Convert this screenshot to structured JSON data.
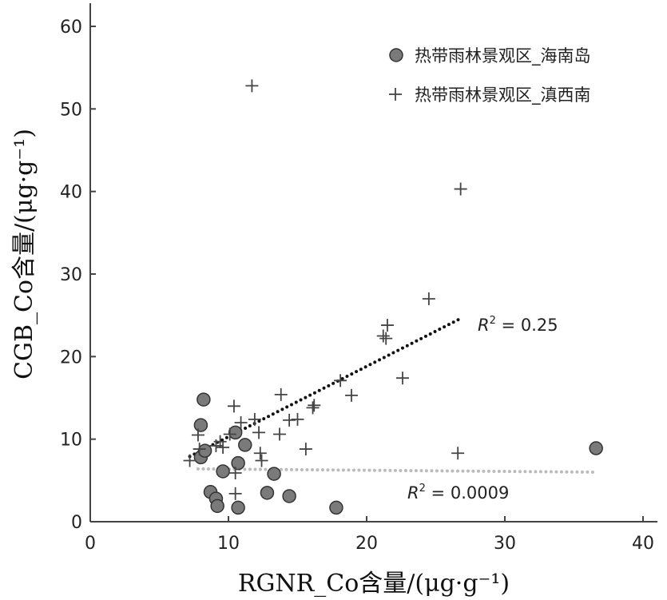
{
  "chart_data": {
    "type": "scatter",
    "xlabel": "RGNR_Co含量/(μg·g⁻¹)",
    "ylabel": "CGB_Co含量/(μg·g⁻¹)",
    "xlim": [
      0,
      40
    ],
    "ylim": [
      0,
      60
    ],
    "x_ticks": [
      "0",
      "10",
      "20",
      "30",
      "40"
    ],
    "y_ticks": [
      "0",
      "10",
      "20",
      "30",
      "40",
      "50",
      "60"
    ],
    "grid": false,
    "legend_position": "top-right",
    "series": [
      {
        "name": "热带雨林景观区_海南岛",
        "marker": "circle",
        "color": "#7a7a7a",
        "points": [
          {
            "x": 8.2,
            "y": 14.8
          },
          {
            "x": 8.0,
            "y": 11.7
          },
          {
            "x": 8.0,
            "y": 7.8
          },
          {
            "x": 8.3,
            "y": 8.6
          },
          {
            "x": 8.7,
            "y": 3.6
          },
          {
            "x": 9.1,
            "y": 2.8
          },
          {
            "x": 9.2,
            "y": 1.9
          },
          {
            "x": 9.6,
            "y": 6.1
          },
          {
            "x": 10.5,
            "y": 10.8
          },
          {
            "x": 10.7,
            "y": 7.1
          },
          {
            "x": 10.7,
            "y": 1.7
          },
          {
            "x": 11.2,
            "y": 9.3
          },
          {
            "x": 12.8,
            "y": 3.5
          },
          {
            "x": 13.3,
            "y": 5.8
          },
          {
            "x": 14.4,
            "y": 3.1
          },
          {
            "x": 17.8,
            "y": 1.7
          },
          {
            "x": 36.6,
            "y": 8.9
          }
        ]
      },
      {
        "name": "热带雨林景观区_滇西南",
        "marker": "plus",
        "color": "#444444",
        "points": [
          {
            "x": 11.7,
            "y": 52.8
          },
          {
            "x": 26.8,
            "y": 40.3
          },
          {
            "x": 24.5,
            "y": 27.0
          },
          {
            "x": 21.5,
            "y": 23.8
          },
          {
            "x": 21.2,
            "y": 22.5
          },
          {
            "x": 21.4,
            "y": 22.2
          },
          {
            "x": 22.6,
            "y": 17.4
          },
          {
            "x": 18.1,
            "y": 17.1
          },
          {
            "x": 18.9,
            "y": 15.3
          },
          {
            "x": 13.8,
            "y": 15.4
          },
          {
            "x": 16.2,
            "y": 14.1
          },
          {
            "x": 16.1,
            "y": 13.8
          },
          {
            "x": 10.4,
            "y": 14.0
          },
          {
            "x": 14.4,
            "y": 12.3
          },
          {
            "x": 15.0,
            "y": 12.4
          },
          {
            "x": 11.9,
            "y": 12.4
          },
          {
            "x": 10.9,
            "y": 12.0
          },
          {
            "x": 12.2,
            "y": 10.8
          },
          {
            "x": 13.7,
            "y": 10.6
          },
          {
            "x": 10.1,
            "y": 10.6
          },
          {
            "x": 7.8,
            "y": 10.5
          },
          {
            "x": 9.4,
            "y": 9.7
          },
          {
            "x": 9.1,
            "y": 9.2
          },
          {
            "x": 9.6,
            "y": 9.0
          },
          {
            "x": 7.9,
            "y": 8.8
          },
          {
            "x": 12.3,
            "y": 8.3
          },
          {
            "x": 15.6,
            "y": 8.8
          },
          {
            "x": 12.4,
            "y": 7.4
          },
          {
            "x": 7.2,
            "y": 7.4
          },
          {
            "x": 26.6,
            "y": 8.3
          },
          {
            "x": 10.5,
            "y": 5.9
          },
          {
            "x": 10.5,
            "y": 3.4
          }
        ]
      }
    ],
    "trendlines": [
      {
        "series": "热带雨林景观区_滇西南",
        "x": [
          7.2,
          26.9
        ],
        "y": [
          7.9,
          24.7
        ],
        "color": "#111111",
        "style": "dotted",
        "label": "0.25"
      },
      {
        "series": "热带雨林景观区_海南岛",
        "x": [
          7.8,
          36.6
        ],
        "y": [
          6.4,
          6.0
        ],
        "color": "#bbbbbb",
        "style": "dotted",
        "label": "0.0009"
      }
    ]
  }
}
